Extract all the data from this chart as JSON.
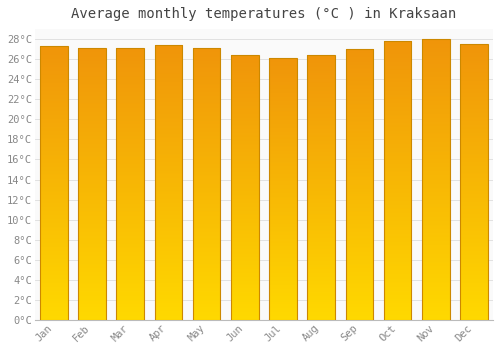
{
  "title": "Average monthly temperatures (°C ) in Kraksaan",
  "months": [
    "Jan",
    "Feb",
    "Mar",
    "Apr",
    "May",
    "Jun",
    "Jul",
    "Aug",
    "Sep",
    "Oct",
    "Nov",
    "Dec"
  ],
  "temperatures": [
    27.3,
    27.1,
    27.1,
    27.4,
    27.1,
    26.4,
    26.1,
    26.4,
    27.0,
    27.8,
    28.0,
    27.5
  ],
  "bar_color_center": "#FFD700",
  "bar_color_edge": "#F0950A",
  "background_color": "#FFFFFF",
  "plot_bg_color": "#FAFAFA",
  "grid_color": "#DDDDDD",
  "ylim": [
    0,
    29
  ],
  "ytick_step": 2,
  "title_fontsize": 10,
  "tick_fontsize": 7.5,
  "font_family": "monospace",
  "bar_width": 0.72
}
